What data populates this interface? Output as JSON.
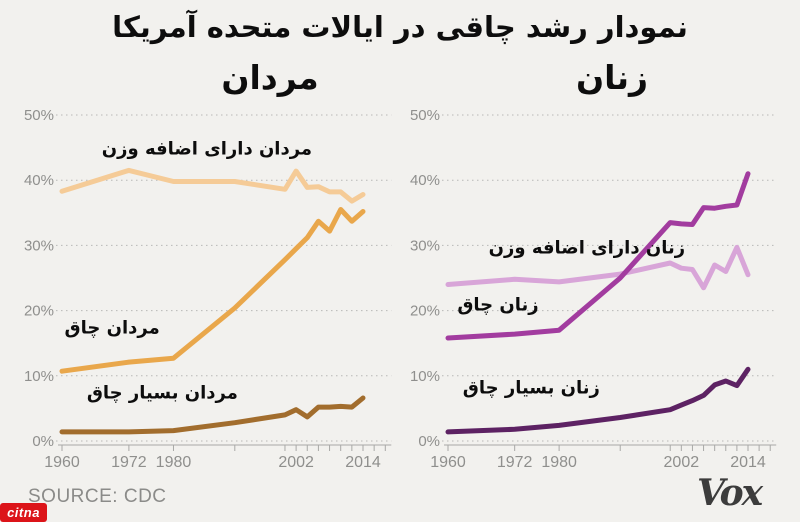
{
  "page": {
    "background": "#f2f1ee"
  },
  "title": "نمودار رشد چاقی در ایالات متحده آمریکا",
  "footer": {
    "source": "SOURCE: CDC",
    "brand": "Vox"
  },
  "watermark": {
    "label": "citna",
    "color": "#dc1419"
  },
  "axes": {
    "y_ticks": [
      {
        "value": 0,
        "label": "0%"
      },
      {
        "value": 10,
        "label": "10%"
      },
      {
        "value": 20,
        "label": "20%"
      },
      {
        "value": 30,
        "label": "30%"
      },
      {
        "value": 40,
        "label": "40%"
      },
      {
        "value": 50,
        "label": "50%"
      }
    ],
    "x_ticks": [
      {
        "year": 1960,
        "label": "1960"
      },
      {
        "year": 1972,
        "label": "1972"
      },
      {
        "year": 1980,
        "label": "1980"
      },
      {
        "year": 1991,
        "label": ""
      },
      {
        "year": 2000,
        "label": ""
      },
      {
        "year": 2002,
        "label": "2002"
      },
      {
        "year": 2004,
        "label": ""
      },
      {
        "year": 2006,
        "label": ""
      },
      {
        "year": 2008,
        "label": ""
      },
      {
        "year": 2010,
        "label": ""
      },
      {
        "year": 2012,
        "label": ""
      },
      {
        "year": 2014,
        "label": "2014"
      },
      {
        "year": 2016,
        "label": ""
      },
      {
        "year": 2018,
        "label": ""
      }
    ],
    "ylim": [
      0,
      50
    ],
    "grid": "dotted-horizontal"
  },
  "chart_data": [
    {
      "type": "line",
      "title": "مردان",
      "x": [
        1960,
        1972,
        1980,
        1991,
        2000,
        2002,
        2004,
        2006,
        2008,
        2010,
        2012,
        2014
      ],
      "ylim": [
        0,
        50
      ],
      "series": [
        {
          "name": "overweight-men",
          "label": "مردان دارای اضافه وزن",
          "color": "#f5cb97",
          "values": [
            38.3,
            41.5,
            39.8,
            39.8,
            38.6,
            41.4,
            38.9,
            39.0,
            38.2,
            38.2,
            36.8,
            37.8
          ],
          "label_pos": {
            "x": 1986,
            "y": 44.8
          }
        },
        {
          "name": "obese-men",
          "label": "مردان چاق",
          "color": "#e9a74b",
          "values": [
            10.7,
            12.1,
            12.7,
            20.4,
            27.8,
            29.5,
            31.2,
            33.7,
            32.2,
            35.5,
            33.7,
            35.2
          ],
          "label_pos": {
            "x": 1969,
            "y": 17.3
          }
        },
        {
          "name": "very-obese-men",
          "label": "مردان بسیار چاق",
          "color": "#a26d2d",
          "values": [
            1.4,
            1.4,
            1.6,
            2.8,
            4.0,
            4.8,
            3.7,
            5.2,
            5.2,
            5.3,
            5.2,
            6.6
          ],
          "label_pos": {
            "x": 1978,
            "y": 7.4
          }
        }
      ]
    },
    {
      "type": "line",
      "title": "زنان",
      "x": [
        1960,
        1972,
        1980,
        1991,
        2000,
        2002,
        2004,
        2006,
        2008,
        2010,
        2012,
        2014
      ],
      "ylim": [
        0,
        50
      ],
      "series": [
        {
          "name": "overweight-women",
          "label": "زنان دارای اضافه وزن",
          "color": "#d8a5d8",
          "values": [
            24.0,
            24.8,
            24.4,
            25.6,
            27.3,
            26.5,
            26.3,
            23.5,
            27.0,
            26.0,
            29.7,
            25.5
          ],
          "label_pos": {
            "x": 1985,
            "y": 29.6
          }
        },
        {
          "name": "obese-women",
          "label": "زنان چاق",
          "color": "#a23c9f",
          "values": [
            15.8,
            16.4,
            17.0,
            25.0,
            33.5,
            33.3,
            33.2,
            35.8,
            35.7,
            36.0,
            36.2,
            41.0
          ],
          "label_pos": {
            "x": 1969,
            "y": 20.9
          }
        },
        {
          "name": "very-obese-women",
          "label": "زنان بسیار چاق",
          "color": "#5d2263",
          "values": [
            1.4,
            1.8,
            2.4,
            3.6,
            4.8,
            5.5,
            6.2,
            7.0,
            8.6,
            9.2,
            8.5,
            11.0
          ],
          "label_pos": {
            "x": 1975,
            "y": 8.2
          }
        }
      ]
    }
  ]
}
